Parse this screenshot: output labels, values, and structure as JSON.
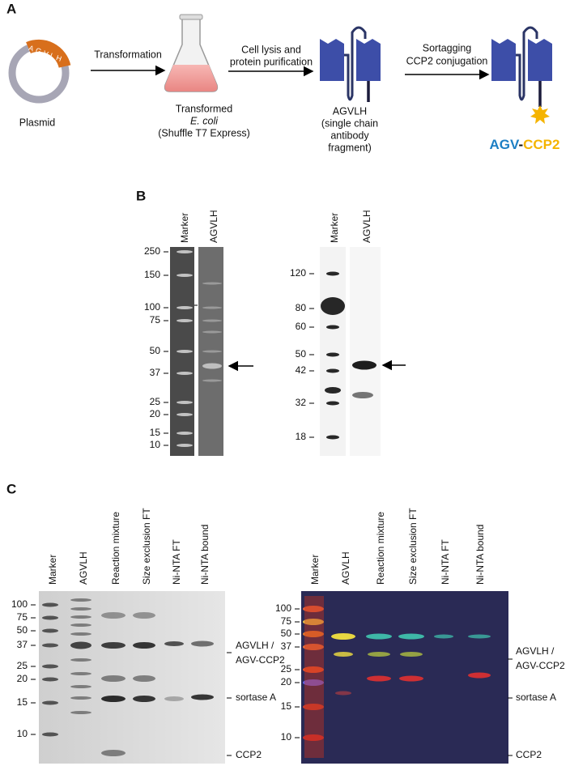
{
  "panel_a": {
    "label": "A",
    "plasmid": "Plasmid",
    "insert": "AGVLH",
    "steps": [
      [
        "Transformation"
      ],
      [
        "Cell lysis and",
        "protein purification"
      ],
      [
        "Sortagging",
        "CCP2 conjugation"
      ]
    ],
    "flask_caption": [
      "Transformed",
      "E. coli",
      "(Shuffle T7 Express)"
    ],
    "antibody_caption": [
      "AGVLH",
      "(single chain",
      "antibody",
      "fragment)"
    ],
    "product": [
      "AGV",
      "-",
      "CCP2"
    ]
  },
  "panel_b": {
    "label": "B",
    "left_gel": {
      "lanes": [
        "Marker",
        "AGVLH"
      ],
      "markers": [
        250,
        150,
        100,
        75,
        50,
        37,
        25,
        20,
        15,
        10
      ]
    },
    "right_gel": {
      "lanes": [
        "Marker",
        "AGVLH"
      ],
      "markers": [
        120,
        80,
        60,
        50,
        42,
        32,
        18
      ]
    }
  },
  "panel_c": {
    "label": "C",
    "left_gel": {
      "lanes": [
        "Marker",
        "AGVLH",
        "Reaction mixture",
        "Size exclusion FT",
        "Ni-NTA FT",
        "Ni-NTA bound"
      ],
      "markers": [
        100,
        75,
        50,
        37,
        25,
        20,
        15,
        10
      ],
      "annotations": [
        "AGVLH /",
        "AGV-CCP2",
        "sortase A",
        "CCP2"
      ]
    },
    "right_gel": {
      "lanes": [
        "Marker",
        "AGVLH",
        "Reaction mixture",
        "Size exclusion FT",
        "Ni-NTA FT",
        "Ni-NTA bound"
      ],
      "markers": [
        100,
        75,
        50,
        37,
        25,
        20,
        15,
        10
      ],
      "annotations": [
        "AGVLH /",
        "AGV-CCP2",
        "sortase A",
        "CCP2"
      ]
    }
  }
}
